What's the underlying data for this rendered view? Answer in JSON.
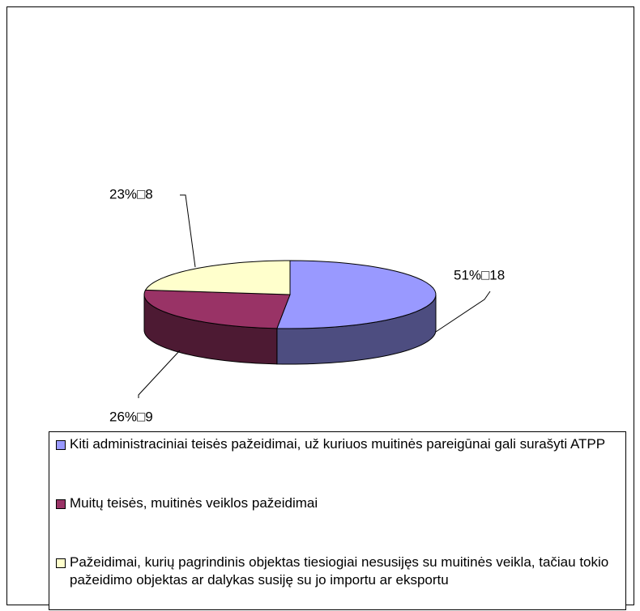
{
  "chart_data": {
    "type": "pie",
    "categories": [
      "Kiti administraciniai teisės pažeidimai, už kuriuos muitinės pareigūnai gali surašyti ATPP",
      "Muitų teisės, muitinės veiklos pažeidimai",
      "Pažeidimai, kurių pagrindinis objektas tiesiogiai nesusijęs su muitinės veikla, tačiau tokio pažeidimo objektas ar dalykas susiję su jo importu ar eksportu"
    ],
    "values": [
      18,
      9,
      8
    ],
    "value_labels": [
      "51%□18",
      "26%□9",
      "23%□8"
    ],
    "colors": [
      "#9999ff",
      "#993366",
      "#ffffcc"
    ],
    "side_colors": [
      "#4d4d80",
      "#4d1a33",
      "#80806a"
    ]
  }
}
